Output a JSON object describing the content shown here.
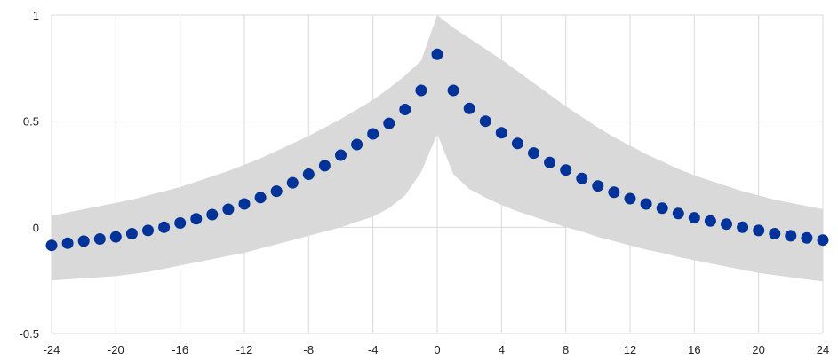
{
  "chart_data": {
    "type": "scatter",
    "title": "",
    "xlabel": "",
    "ylabel": "",
    "xlim": [
      -24,
      24
    ],
    "ylim": [
      -0.5,
      1
    ],
    "grid": true,
    "x_ticks": [
      -24,
      -20,
      -16,
      -12,
      -8,
      -4,
      0,
      4,
      8,
      12,
      16,
      20,
      24
    ],
    "y_ticks": [
      -0.5,
      0,
      0.5,
      1
    ],
    "x_tick_labels": [
      "-24",
      "-20",
      "-16",
      "-12",
      "-8",
      "-4",
      "0",
      "4",
      "8",
      "12",
      "16",
      "20",
      "24"
    ],
    "y_tick_labels": [
      "-0.5",
      "0",
      "0.5",
      "1"
    ],
    "colors": {
      "points": "#003399",
      "band": "#d9d9d9",
      "grid": "#d9d9d9",
      "text": "#222222"
    },
    "series": [
      {
        "x": [
          -24,
          -23,
          -22,
          -21,
          -20,
          -19,
          -18,
          -17,
          -16,
          -15,
          -14,
          -13,
          -12,
          -11,
          -10,
          -9,
          -8,
          -7,
          -6,
          -5,
          -4,
          -3,
          -2,
          -1,
          0,
          1,
          2,
          3,
          4,
          5,
          6,
          7,
          8,
          9,
          10,
          11,
          12,
          13,
          14,
          15,
          16,
          17,
          18,
          19,
          20,
          21,
          22,
          23,
          24
        ],
        "y": [
          -0.085,
          -0.075,
          -0.065,
          -0.055,
          -0.045,
          -0.03,
          -0.015,
          0.0,
          0.02,
          0.04,
          0.06,
          0.085,
          0.11,
          0.14,
          0.17,
          0.21,
          0.25,
          0.29,
          0.34,
          0.39,
          0.44,
          0.49,
          0.555,
          0.645,
          0.815,
          0.645,
          0.56,
          0.5,
          0.445,
          0.395,
          0.35,
          0.305,
          0.27,
          0.23,
          0.195,
          0.165,
          0.135,
          0.11,
          0.09,
          0.065,
          0.045,
          0.03,
          0.015,
          0.0,
          -0.015,
          -0.03,
          -0.04,
          -0.05,
          -0.06
        ]
      }
    ],
    "band": {
      "x": [
        -24,
        -23,
        -22,
        -21,
        -20,
        -19,
        -18,
        -17,
        -16,
        -15,
        -14,
        -13,
        -12,
        -11,
        -10,
        -9,
        -8,
        -7,
        -6,
        -5,
        -4,
        -3,
        -2,
        -1,
        0,
        1,
        2,
        3,
        4,
        5,
        6,
        7,
        8,
        9,
        10,
        11,
        12,
        13,
        14,
        15,
        16,
        17,
        18,
        19,
        20,
        21,
        22,
        23,
        24
      ],
      "upper": [
        0.055,
        0.07,
        0.085,
        0.1,
        0.115,
        0.13,
        0.15,
        0.17,
        0.19,
        0.215,
        0.24,
        0.265,
        0.295,
        0.325,
        0.36,
        0.395,
        0.43,
        0.47,
        0.51,
        0.555,
        0.6,
        0.655,
        0.715,
        0.785,
        1.0,
        0.94,
        0.89,
        0.84,
        0.79,
        0.735,
        0.68,
        0.625,
        0.57,
        0.52,
        0.47,
        0.425,
        0.385,
        0.345,
        0.31,
        0.275,
        0.245,
        0.22,
        0.195,
        0.17,
        0.15,
        0.13,
        0.115,
        0.1,
        0.085
      ],
      "lower": [
        -0.25,
        -0.245,
        -0.24,
        -0.235,
        -0.23,
        -0.22,
        -0.21,
        -0.195,
        -0.18,
        -0.165,
        -0.15,
        -0.135,
        -0.12,
        -0.1,
        -0.08,
        -0.06,
        -0.04,
        -0.02,
        0.0,
        0.025,
        0.05,
        0.09,
        0.15,
        0.26,
        0.44,
        0.25,
        0.18,
        0.14,
        0.105,
        0.075,
        0.05,
        0.025,
        0.0,
        -0.02,
        -0.045,
        -0.065,
        -0.085,
        -0.105,
        -0.12,
        -0.14,
        -0.155,
        -0.17,
        -0.185,
        -0.2,
        -0.215,
        -0.225,
        -0.235,
        -0.245,
        -0.255
      ]
    }
  }
}
